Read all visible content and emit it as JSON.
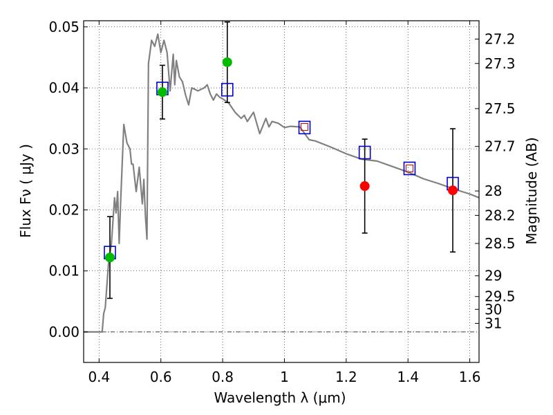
{
  "chart_data": {
    "type": "scatter",
    "xlabel": "Wavelength  λ (μm)",
    "ylabel": "Flux  Fν  ( μJy )",
    "ylabel_right": "Magnitude (AB)",
    "xlim": [
      0.35,
      1.63
    ],
    "ylim": [
      -0.005,
      0.051
    ],
    "grid": true,
    "x_ticks": [
      0.4,
      0.6,
      0.8,
      1.0,
      1.2,
      1.4,
      1.6
    ],
    "x_tick_labels": [
      "0.4",
      "0.6",
      "0.8",
      "1",
      "1.2",
      "1.4",
      "1.6"
    ],
    "y_ticks": [
      0.0,
      0.01,
      0.02,
      0.03,
      0.04,
      0.05
    ],
    "y_tick_labels": [
      "0.00",
      "0.01",
      "0.02",
      "0.03",
      "0.04",
      "0.05"
    ],
    "mag_ticks": [
      {
        "label": "27.2",
        "flux": 0.048
      },
      {
        "label": "27.3",
        "flux": 0.044
      },
      {
        "label": "27.5",
        "flux": 0.0366
      },
      {
        "label": "27.7",
        "flux": 0.0304
      },
      {
        "label": "28",
        "flux": 0.0231
      },
      {
        "label": "28.2",
        "flux": 0.0191
      },
      {
        "label": "28.5",
        "flux": 0.0145
      },
      {
        "label": "29",
        "flux": 0.0092
      },
      {
        "label": "29.5",
        "flux": 0.0058
      },
      {
        "label": "30",
        "flux": 0.0037
      },
      {
        "label": "31",
        "flux": 0.0014
      }
    ],
    "model_spectrum": {
      "color": "#808080",
      "x": [
        0.35,
        0.4,
        0.41,
        0.415,
        0.42,
        0.43,
        0.44,
        0.45,
        0.455,
        0.46,
        0.465,
        0.47,
        0.48,
        0.49,
        0.5,
        0.505,
        0.51,
        0.52,
        0.53,
        0.54,
        0.545,
        0.55,
        0.555,
        0.56,
        0.57,
        0.58,
        0.59,
        0.6,
        0.61,
        0.62,
        0.63,
        0.64,
        0.645,
        0.65,
        0.66,
        0.67,
        0.68,
        0.69,
        0.7,
        0.72,
        0.74,
        0.75,
        0.76,
        0.77,
        0.78,
        0.79,
        0.8,
        0.82,
        0.84,
        0.86,
        0.87,
        0.88,
        0.9,
        0.92,
        0.94,
        0.95,
        0.96,
        0.98,
        1.0,
        1.02,
        1.05,
        1.08,
        1.1,
        1.15,
        1.2,
        1.25,
        1.3,
        1.35,
        1.4,
        1.45,
        1.5,
        1.55,
        1.6,
        1.63
      ],
      "y": [
        0.0,
        0.0,
        0.0,
        0.003,
        0.004,
        0.011,
        0.0145,
        0.022,
        0.0195,
        0.023,
        0.0145,
        0.0215,
        0.034,
        0.031,
        0.03,
        0.0275,
        0.0275,
        0.023,
        0.027,
        0.021,
        0.025,
        0.019,
        0.0152,
        0.044,
        0.0478,
        0.0468,
        0.0488,
        0.0458,
        0.0478,
        0.0458,
        0.0395,
        0.0455,
        0.0405,
        0.0445,
        0.0418,
        0.041,
        0.0388,
        0.0372,
        0.04,
        0.0395,
        0.04,
        0.0405,
        0.039,
        0.038,
        0.039,
        0.0385,
        0.0382,
        0.0375,
        0.036,
        0.035,
        0.0355,
        0.0345,
        0.036,
        0.0325,
        0.035,
        0.0336,
        0.0345,
        0.0342,
        0.0335,
        0.0337,
        0.0336,
        0.0315,
        0.0313,
        0.0303,
        0.0292,
        0.0283,
        0.028,
        0.0271,
        0.0262,
        0.0251,
        0.0243,
        0.0234,
        0.0226,
        0.022
      ]
    },
    "model_points": {
      "color": "#0000cc",
      "marker": "open-square",
      "x": [
        0.435,
        0.605,
        0.815,
        1.065,
        1.26,
        1.405,
        1.545
      ],
      "y": [
        0.013,
        0.0399,
        0.0397,
        0.0335,
        0.0294,
        0.0268,
        0.0243
      ]
    },
    "synthetic_points": {
      "color": "#cc0000",
      "marker": "small-open-square",
      "x": [
        1.065,
        1.405
      ],
      "y": [
        0.0336,
        0.0268
      ]
    },
    "detections": {
      "color": "#00bb00",
      "marker": "filled-circle",
      "x": [
        0.435,
        0.605,
        0.815
      ],
      "y": [
        0.0122,
        0.0393,
        0.0442
      ],
      "yerr": [
        0.0067,
        0.0044,
        0.0066
      ]
    },
    "upper_limits": {
      "color": "#ff0000",
      "marker": "filled-circle",
      "x": [
        1.26,
        1.545
      ],
      "y": [
        0.0239,
        0.0232
      ],
      "yerr": [
        0.0077,
        0.0101
      ]
    }
  }
}
